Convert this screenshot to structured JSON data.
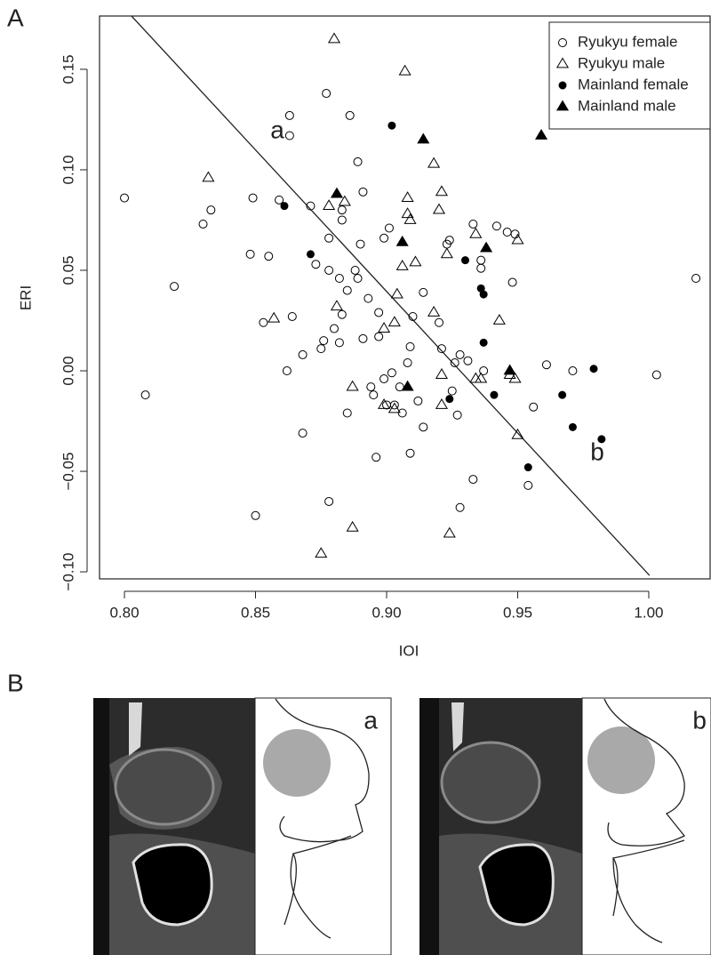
{
  "panels": [
    "A",
    "B"
  ],
  "chart_data": {
    "type": "scatter",
    "xlabel": "IOI",
    "ylabel": "ERI",
    "xlim": [
      0.7905,
      1.0234
    ],
    "ylim": [
      -0.1035,
      0.1765
    ],
    "xticks": [
      {
        "value": 0.8,
        "label": "0.80"
      },
      {
        "value": 0.85,
        "label": "0.85"
      },
      {
        "value": 0.9,
        "label": "0.90"
      },
      {
        "value": 0.95,
        "label": "0.95"
      },
      {
        "value": 1.0,
        "label": "1.00"
      }
    ],
    "yticks": [
      {
        "value": -0.1,
        "label": "−0.10"
      },
      {
        "value": -0.05,
        "label": "−0.05"
      },
      {
        "value": 0,
        "label": "0.00"
      },
      {
        "value": 0.05,
        "label": "0.05"
      },
      {
        "value": 0.1,
        "label": "0.10"
      },
      {
        "value": 0.15,
        "label": "0.15"
      }
    ],
    "annotations": [
      "a",
      "b"
    ],
    "line": {
      "x": [
        0.8027,
        1.0003
      ],
      "y": [
        0.1765,
        -0.1018
      ]
    },
    "legend": "top-right",
    "series": [
      {
        "name": "Ryukyu female",
        "marker": "circle",
        "filled": false,
        "color": "#000000",
        "x": [
          0.8,
          0.808,
          0.819,
          0.83,
          0.833,
          0.849,
          0.848,
          0.855,
          0.85,
          0.853,
          0.862,
          0.864,
          0.859,
          0.863,
          0.863,
          0.871,
          0.868,
          0.868,
          0.873,
          0.875,
          0.876,
          0.877,
          0.878,
          0.878,
          0.878,
          0.88,
          0.882,
          0.882,
          0.883,
          0.883,
          0.883,
          0.885,
          0.886,
          0.885,
          0.888,
          0.889,
          0.89,
          0.889,
          0.891,
          0.893,
          0.891,
          0.899,
          0.894,
          0.895,
          0.896,
          0.897,
          0.897,
          0.899,
          0.901,
          0.9,
          0.902,
          0.903,
          0.905,
          0.906,
          0.908,
          0.909,
          0.909,
          0.91,
          0.912,
          0.914,
          0.914,
          0.92,
          0.921,
          0.923,
          0.924,
          0.925,
          0.926,
          0.928,
          0.927,
          0.931,
          0.933,
          0.928,
          0.933,
          0.936,
          0.936,
          0.937,
          0.942,
          0.946,
          0.949,
          0.948,
          0.954,
          0.956,
          0.961,
          0.971,
          1.003,
          1.018
        ],
        "y": [
          0.086,
          -0.012,
          0.042,
          0.073,
          0.08,
          0.086,
          0.058,
          0.057,
          -0.072,
          0.024,
          0.0,
          0.027,
          0.085,
          0.127,
          0.117,
          0.082,
          0.008,
          -0.031,
          0.053,
          0.011,
          0.015,
          0.138,
          0.05,
          0.066,
          -0.065,
          0.021,
          0.014,
          0.046,
          0.028,
          0.075,
          0.08,
          0.04,
          0.127,
          -0.021,
          0.05,
          0.104,
          0.063,
          0.046,
          0.016,
          0.036,
          0.089,
          0.066,
          -0.008,
          -0.012,
          -0.043,
          0.017,
          0.029,
          -0.004,
          0.071,
          -0.017,
          -0.001,
          -0.017,
          -0.008,
          -0.021,
          0.004,
          -0.041,
          0.012,
          0.027,
          -0.015,
          0.039,
          -0.028,
          0.024,
          0.011,
          0.063,
          0.065,
          -0.01,
          0.004,
          0.008,
          -0.022,
          0.005,
          -0.054,
          -0.068,
          0.073,
          0.051,
          0.055,
          0.0,
          0.072,
          0.069,
          0.068,
          0.044,
          -0.057,
          -0.018,
          0.003,
          0.0,
          -0.002,
          0.046
        ]
      },
      {
        "name": "Ryukyu male",
        "marker": "triangle",
        "filled": false,
        "color": "#000000",
        "x": [
          0.832,
          0.88,
          0.907,
          0.878,
          0.884,
          0.908,
          0.908,
          0.909,
          0.921,
          0.92,
          0.923,
          0.906,
          0.911,
          0.857,
          0.881,
          0.904,
          0.899,
          0.903,
          0.918,
          0.921,
          0.921,
          0.934,
          0.934,
          0.936,
          0.943,
          0.947,
          0.949,
          0.95,
          0.95,
          0.887,
          0.899,
          0.903,
          0.887,
          0.875,
          0.924,
          0.918
        ],
        "y": [
          0.096,
          0.165,
          0.149,
          0.082,
          0.084,
          0.086,
          0.078,
          0.075,
          0.089,
          0.08,
          0.058,
          0.052,
          0.054,
          0.026,
          0.032,
          0.038,
          0.021,
          0.024,
          0.029,
          -0.002,
          -0.017,
          0.068,
          -0.004,
          -0.004,
          0.025,
          -0.002,
          -0.004,
          -0.032,
          0.065,
          -0.008,
          -0.017,
          -0.019,
          -0.078,
          -0.091,
          -0.081,
          0.103
        ]
      },
      {
        "name": "Mainland female",
        "marker": "circle",
        "filled": true,
        "color": "#000000",
        "x": [
          0.861,
          0.871,
          0.902,
          0.93,
          0.936,
          0.937,
          0.937,
          0.924,
          0.941,
          0.954,
          0.967,
          0.971,
          0.979,
          0.982
        ],
        "y": [
          0.082,
          0.058,
          0.122,
          0.055,
          0.041,
          0.038,
          0.014,
          -0.014,
          -0.012,
          -0.048,
          -0.012,
          -0.028,
          0.001,
          -0.034
        ]
      },
      {
        "name": "Mainland male",
        "marker": "triangle",
        "filled": true,
        "color": "#000000",
        "x": [
          0.881,
          0.906,
          0.914,
          0.938,
          0.947,
          0.908,
          0.959
        ],
        "y": [
          0.088,
          0.064,
          0.115,
          0.061,
          0.0,
          -0.008,
          0.117
        ]
      }
    ]
  },
  "images": [
    {
      "label": "a"
    },
    {
      "label": "b"
    }
  ]
}
